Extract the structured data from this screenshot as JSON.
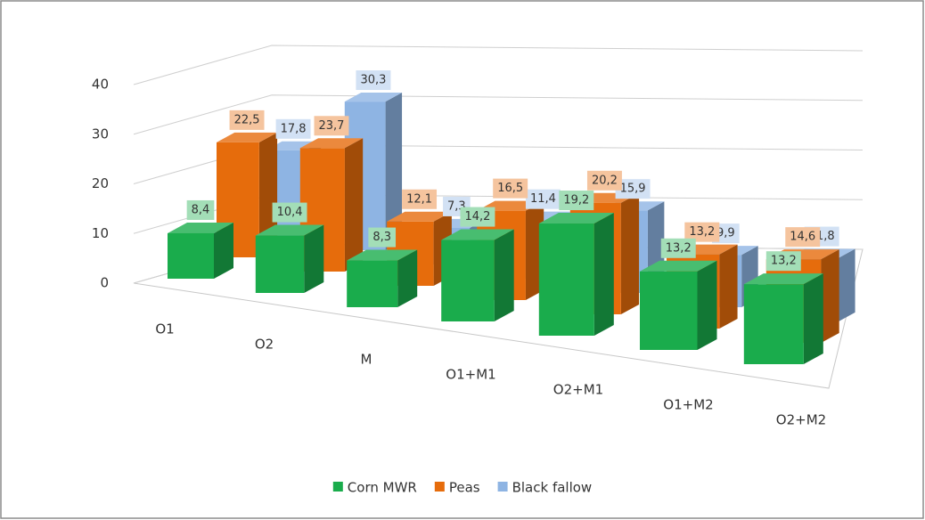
{
  "chart_data": {
    "type": "bar3d",
    "categories": [
      "O1",
      "O2",
      "M",
      "O1+M1",
      "O2+M1",
      "O1+M2",
      "O2+M2"
    ],
    "series": [
      {
        "name": "Corn MWR",
        "color": "#1aac4c",
        "values": [
          8.4,
          10.4,
          8.3,
          14.2,
          19.2,
          13.2,
          13.2
        ],
        "value_labels": [
          "8,4",
          "10,4",
          "8,3",
          "14,2",
          "19,2",
          "13,2",
          "13,2"
        ]
      },
      {
        "name": "Peas",
        "color": "#e66c0c",
        "values": [
          22.5,
          23.7,
          12.1,
          16.5,
          20.2,
          13.2,
          14.6
        ],
        "value_labels": [
          "22,5",
          "23,7",
          "12,1",
          "16,5",
          "20,2",
          "13,2",
          "14,6"
        ]
      },
      {
        "name": "Black fallow",
        "color": "#8eb4e3",
        "values": [
          17.8,
          30.3,
          7.3,
          11.4,
          15.9,
          9.9,
          11.8
        ],
        "value_labels": [
          "17,8",
          "30,3",
          "7,3",
          "11,4",
          "15,9",
          "9,9",
          "11,8"
        ]
      }
    ],
    "ylim": [
      0,
      40
    ],
    "yticks": [
      0,
      10,
      20,
      30,
      40
    ],
    "grid": true,
    "legend": "bottom"
  }
}
